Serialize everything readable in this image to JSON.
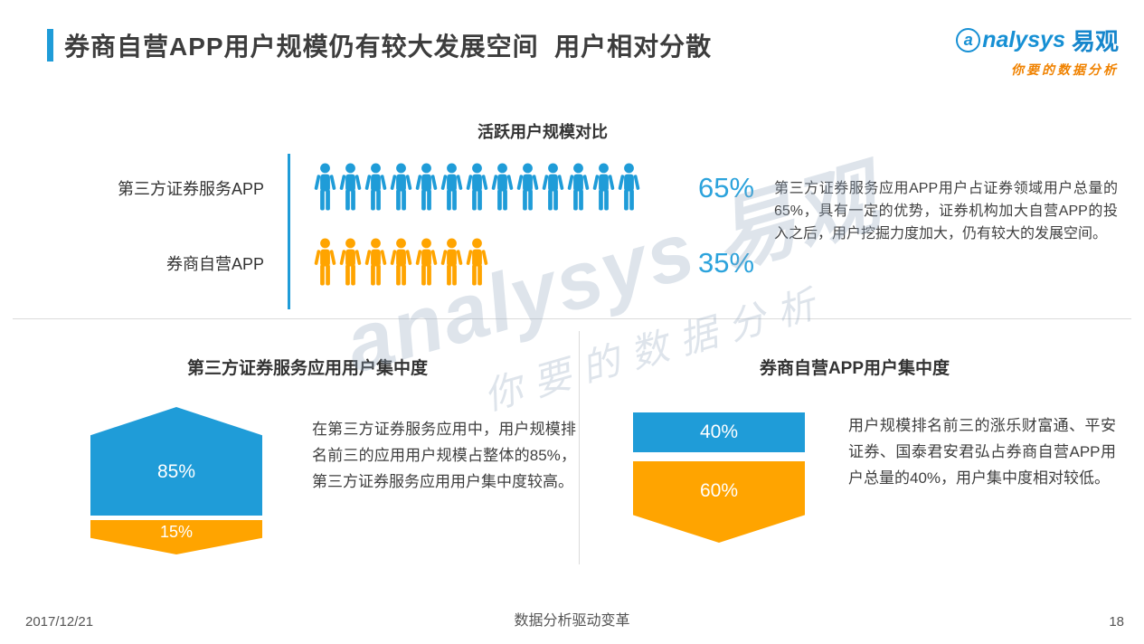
{
  "page": {
    "title": "券商自营APP用户规模仍有较大发展空间  用户相对分散",
    "footer": {
      "date": "2017/12/21",
      "slogan": "数据分析驱动变革",
      "page_number": "18"
    }
  },
  "logo": {
    "initial": "a",
    "brand_rest": "nalysys",
    "brand_cn": "易观",
    "tagline": "你要的数据分析"
  },
  "watermark": {
    "line1": "analysys 易观",
    "line2": "你要的数据分析"
  },
  "colors": {
    "blue": "#1F9CD8",
    "orange": "#FFA400",
    "percent_text": "#2CA3DC",
    "divider": "#DBDBDB",
    "accent": "#1F9CD8"
  },
  "chart_data": [
    {
      "type": "pictogram",
      "title": "活跃用户规模对比",
      "unit_pct_per_icon": 5,
      "series": [
        {
          "label": "第三方证券服务APP",
          "value": 65,
          "value_label": "65%",
          "icon_count": 13,
          "color": "#1F9CD8"
        },
        {
          "label": "券商自营APP",
          "value": 35,
          "value_label": "35%",
          "icon_count": 7,
          "color": "#FFA400"
        }
      ],
      "note": "第三方证券服务应用APP用户占证券领域用户总量的65%，具有一定的优势，证券机构加大自营APP的投入之后，用户挖掘力度加大，仍有较大的发展空间。"
    },
    {
      "type": "shape-stack",
      "title": "第三方证券服务应用用户集中度",
      "segments": [
        {
          "label": "85%",
          "value": 85,
          "color": "#1F9CD8"
        },
        {
          "label": "15%",
          "value": 15,
          "color": "#FFA400"
        }
      ],
      "note": "在第三方证券服务应用中，用户规模排名前三的应用用户规模占整体的85%，第三方证券服务应用用户集中度较高。"
    },
    {
      "type": "shape-stack",
      "title": "券商自营APP用户集中度",
      "segments": [
        {
          "label": "40%",
          "value": 40,
          "color": "#1F9CD8"
        },
        {
          "label": "60%",
          "value": 60,
          "color": "#FFA400"
        }
      ],
      "note": "用户规模排名前三的涨乐财富通、平安证券、国泰君安君弘占券商自营APP用户总量的40%，用户集中度相对较低。"
    }
  ]
}
